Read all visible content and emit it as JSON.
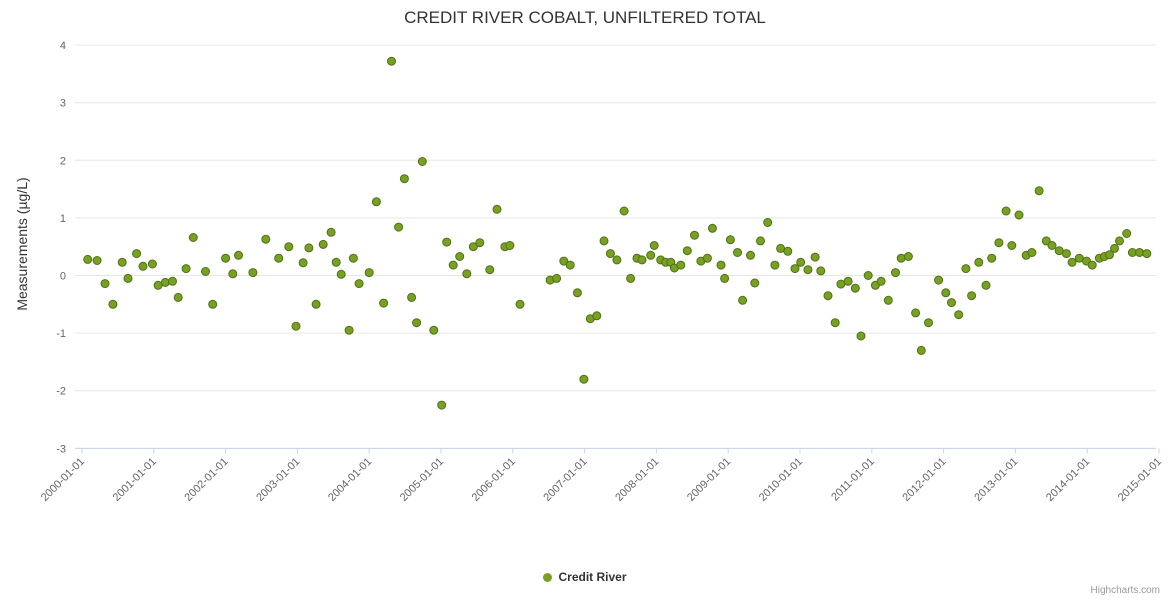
{
  "credits": "Highcharts.com",
  "chart_data": {
    "type": "scatter",
    "title": "CREDIT RIVER COBALT, UNFILTERED TOTAL",
    "xlabel": "",
    "ylabel": "Measurements (µg/L)",
    "ylim": [
      -3,
      4
    ],
    "xlim": [
      1999.9,
      2015.1
    ],
    "grid": true,
    "legend_position": "bottom",
    "y_ticks": [
      -3,
      -2,
      -1,
      0,
      1,
      2,
      3,
      4
    ],
    "x_ticks": [
      "2000-01-01",
      "2001-01-01",
      "2002-01-01",
      "2003-01-01",
      "2004-01-01",
      "2005-01-01",
      "2006-01-01",
      "2007-01-01",
      "2008-01-01",
      "2009-01-01",
      "2010-01-01",
      "2011-01-01",
      "2012-01-01",
      "2013-01-01",
      "2014-01-01",
      "2015-01-01"
    ],
    "series": [
      {
        "name": "Credit River",
        "color": "#77a122",
        "marker_stroke": "#527016",
        "points": [
          [
            2000.08,
            0.28
          ],
          [
            2000.21,
            0.26
          ],
          [
            2000.32,
            -0.14
          ],
          [
            2000.43,
            -0.5
          ],
          [
            2000.56,
            0.23
          ],
          [
            2000.64,
            -0.05
          ],
          [
            2000.76,
            0.38
          ],
          [
            2000.85,
            0.16
          ],
          [
            2000.98,
            0.2
          ],
          [
            2001.06,
            -0.17
          ],
          [
            2001.16,
            -0.12
          ],
          [
            2001.26,
            -0.1
          ],
          [
            2001.34,
            -0.38
          ],
          [
            2001.45,
            0.12
          ],
          [
            2001.55,
            0.66
          ],
          [
            2001.72,
            0.07
          ],
          [
            2001.82,
            -0.5
          ],
          [
            2002.0,
            0.3
          ],
          [
            2002.1,
            0.03
          ],
          [
            2002.18,
            0.35
          ],
          [
            2002.38,
            0.05
          ],
          [
            2002.56,
            0.63
          ],
          [
            2002.74,
            0.3
          ],
          [
            2002.88,
            0.5
          ],
          [
            2002.98,
            -0.88
          ],
          [
            2003.08,
            0.22
          ],
          [
            2003.16,
            0.48
          ],
          [
            2003.26,
            -0.5
          ],
          [
            2003.36,
            0.54
          ],
          [
            2003.47,
            0.75
          ],
          [
            2003.54,
            0.23
          ],
          [
            2003.61,
            0.02
          ],
          [
            2003.72,
            -0.95
          ],
          [
            2003.78,
            0.3
          ],
          [
            2003.86,
            -0.14
          ],
          [
            2004.0,
            0.05
          ],
          [
            2004.1,
            1.28
          ],
          [
            2004.2,
            -0.48
          ],
          [
            2004.31,
            3.72
          ],
          [
            2004.41,
            0.84
          ],
          [
            2004.49,
            1.68
          ],
          [
            2004.59,
            -0.38
          ],
          [
            2004.66,
            -0.82
          ],
          [
            2004.74,
            1.98
          ],
          [
            2004.9,
            -0.95
          ],
          [
            2005.01,
            -2.25
          ],
          [
            2005.08,
            0.58
          ],
          [
            2005.17,
            0.18
          ],
          [
            2005.26,
            0.33
          ],
          [
            2005.36,
            0.03
          ],
          [
            2005.45,
            0.5
          ],
          [
            2005.54,
            0.57
          ],
          [
            2005.68,
            0.1
          ],
          [
            2005.78,
            1.15
          ],
          [
            2005.89,
            0.5
          ],
          [
            2005.96,
            0.52
          ],
          [
            2006.1,
            -0.5
          ],
          [
            2006.52,
            -0.08
          ],
          [
            2006.61,
            -0.05
          ],
          [
            2006.71,
            0.25
          ],
          [
            2006.8,
            0.18
          ],
          [
            2006.9,
            -0.3
          ],
          [
            2006.99,
            -1.8
          ],
          [
            2007.08,
            -0.75
          ],
          [
            2007.17,
            -0.7
          ],
          [
            2007.27,
            0.6
          ],
          [
            2007.36,
            0.38
          ],
          [
            2007.45,
            0.27
          ],
          [
            2007.55,
            1.12
          ],
          [
            2007.64,
            -0.05
          ],
          [
            2007.73,
            0.3
          ],
          [
            2007.8,
            0.27
          ],
          [
            2007.92,
            0.35
          ],
          [
            2007.97,
            0.52
          ],
          [
            2008.06,
            0.27
          ],
          [
            2008.13,
            0.23
          ],
          [
            2008.2,
            0.23
          ],
          [
            2008.25,
            0.13
          ],
          [
            2008.34,
            0.18
          ],
          [
            2008.43,
            0.43
          ],
          [
            2008.53,
            0.7
          ],
          [
            2008.62,
            0.25
          ],
          [
            2008.71,
            0.3
          ],
          [
            2008.78,
            0.82
          ],
          [
            2008.9,
            0.18
          ],
          [
            2008.95,
            -0.05
          ],
          [
            2009.03,
            0.62
          ],
          [
            2009.13,
            0.4
          ],
          [
            2009.2,
            -0.43
          ],
          [
            2009.31,
            0.35
          ],
          [
            2009.37,
            -0.13
          ],
          [
            2009.45,
            0.6
          ],
          [
            2009.55,
            0.92
          ],
          [
            2009.65,
            0.18
          ],
          [
            2009.73,
            0.47
          ],
          [
            2009.83,
            0.42
          ],
          [
            2009.93,
            0.12
          ],
          [
            2010.01,
            0.23
          ],
          [
            2010.11,
            0.1
          ],
          [
            2010.21,
            0.32
          ],
          [
            2010.29,
            0.08
          ],
          [
            2010.39,
            -0.35
          ],
          [
            2010.49,
            -0.82
          ],
          [
            2010.57,
            -0.15
          ],
          [
            2010.67,
            -0.1
          ],
          [
            2010.77,
            -0.22
          ],
          [
            2010.85,
            -1.05
          ],
          [
            2010.95,
            0.0
          ],
          [
            2011.05,
            -0.17
          ],
          [
            2011.13,
            -0.1
          ],
          [
            2011.23,
            -0.43
          ],
          [
            2011.33,
            0.05
          ],
          [
            2011.41,
            0.3
          ],
          [
            2011.51,
            0.33
          ],
          [
            2011.61,
            -0.65
          ],
          [
            2011.69,
            -1.3
          ],
          [
            2011.79,
            -0.82
          ],
          [
            2011.93,
            -0.08
          ],
          [
            2012.03,
            -0.3
          ],
          [
            2012.11,
            -0.47
          ],
          [
            2012.21,
            -0.68
          ],
          [
            2012.31,
            0.12
          ],
          [
            2012.39,
            -0.35
          ],
          [
            2012.49,
            0.23
          ],
          [
            2012.59,
            -0.17
          ],
          [
            2012.67,
            0.3
          ],
          [
            2012.77,
            0.57
          ],
          [
            2012.87,
            1.12
          ],
          [
            2012.95,
            0.52
          ],
          [
            2013.05,
            1.05
          ],
          [
            2013.15,
            0.35
          ],
          [
            2013.23,
            0.4
          ],
          [
            2013.33,
            1.47
          ],
          [
            2013.43,
            0.6
          ],
          [
            2013.51,
            0.52
          ],
          [
            2013.61,
            0.43
          ],
          [
            2013.71,
            0.38
          ],
          [
            2013.79,
            0.23
          ],
          [
            2013.89,
            0.3
          ],
          [
            2013.99,
            0.25
          ],
          [
            2014.07,
            0.18
          ],
          [
            2014.17,
            0.3
          ],
          [
            2014.24,
            0.33
          ],
          [
            2014.31,
            0.36
          ],
          [
            2014.38,
            0.47
          ],
          [
            2014.45,
            0.6
          ],
          [
            2014.55,
            0.73
          ],
          [
            2014.63,
            0.4
          ],
          [
            2014.73,
            0.4
          ],
          [
            2014.83,
            0.38
          ]
        ]
      }
    ]
  }
}
